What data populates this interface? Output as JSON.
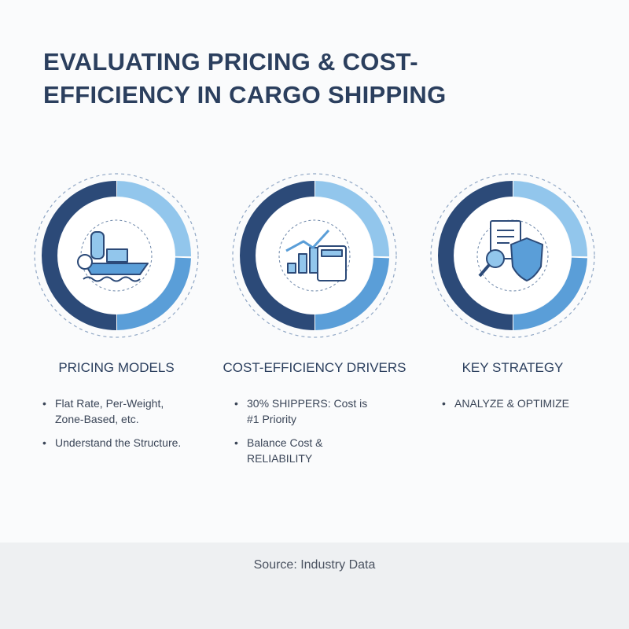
{
  "header": {
    "title_lines": [
      "EVALUATING PRICING & COST-",
      "EFFICIENCY IN CARGO SHIPPING"
    ]
  },
  "columns": [
    {
      "heading": "PRICING MODELS",
      "bullets": [
        "Flat Rate, Per-Weight, Zone-Based, etc.",
        "Understand the Structure."
      ]
    },
    {
      "heading": "COST-EFFICIENCY DRIVERS",
      "bullets": [
        "30% SHIPPERS: Cost is #1 Priority",
        "Balance Cost & RELIABILITY"
      ]
    },
    {
      "heading": "KEY STRATEGY",
      "bullets": [
        "ANALYZE & OPTIMIZE"
      ]
    }
  ],
  "footer": {
    "source": "Source: Industry Data"
  }
}
